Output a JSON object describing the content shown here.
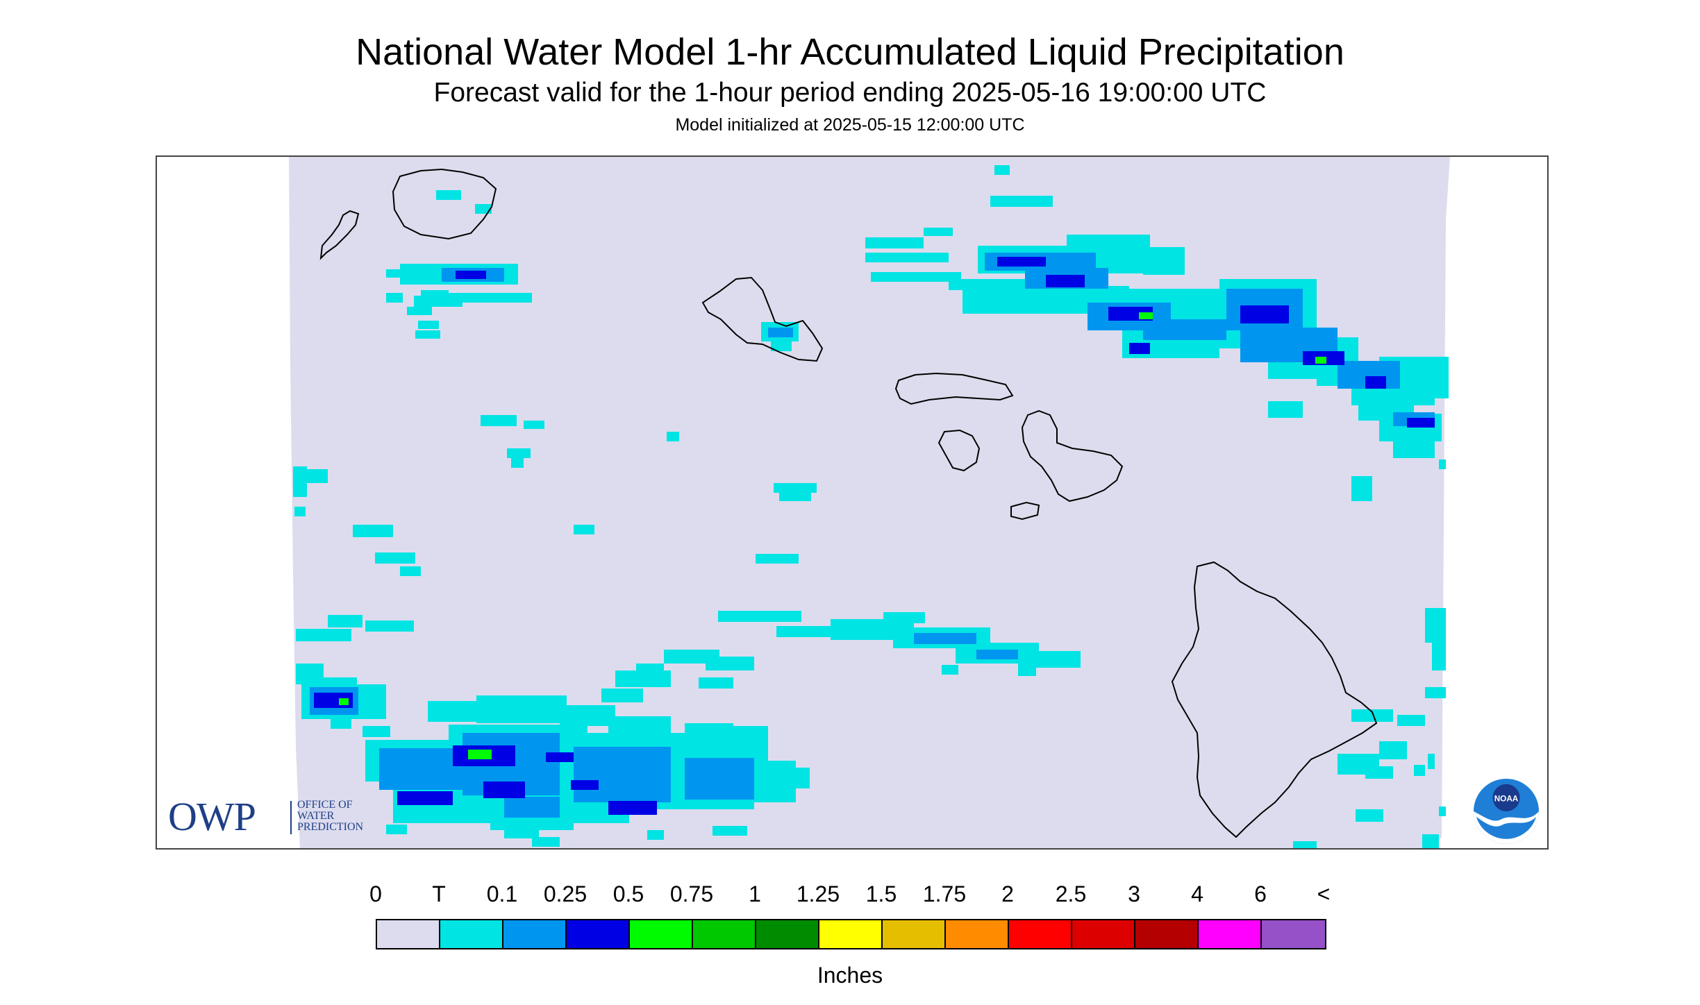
{
  "header": {
    "title": "National Water Model 1-hr Accumulated Liquid Precipitation",
    "subtitle": "Forecast valid for the 1-hour period ending 2025-05-16 19:00:00 UTC",
    "init": "Model initialized at 2025-05-15 12:00:00 UTC"
  },
  "map": {
    "background_color": "#dcdcee",
    "outline_color": "#000000",
    "islands": [
      "Kauai",
      "Niihau",
      "Oahu",
      "Molokai",
      "Lanai",
      "Maui",
      "Kahoolawe",
      "Hawaii"
    ]
  },
  "logos": {
    "owp_letters": "OWP",
    "owp_line1": "OFFICE OF",
    "owp_line2": "WATER",
    "owp_line3": "PREDICTION",
    "noaa_text": "NOAA"
  },
  "legend": {
    "labels": [
      "0",
      "T",
      "0.1",
      "0.25",
      "0.5",
      "0.75",
      "1",
      "1.25",
      "1.5",
      "1.75",
      "2",
      "2.5",
      "3",
      "4",
      "6",
      "<"
    ],
    "colors": [
      "#dcdcee",
      "#00e4e4",
      "#0096f0",
      "#0000e4",
      "#00fa00",
      "#00c800",
      "#008c00",
      "#ffff00",
      "#e6be00",
      "#ff8c00",
      "#ff0000",
      "#dc0000",
      "#b40000",
      "#ff00ff",
      "#9650c8"
    ],
    "units": "Inches"
  }
}
